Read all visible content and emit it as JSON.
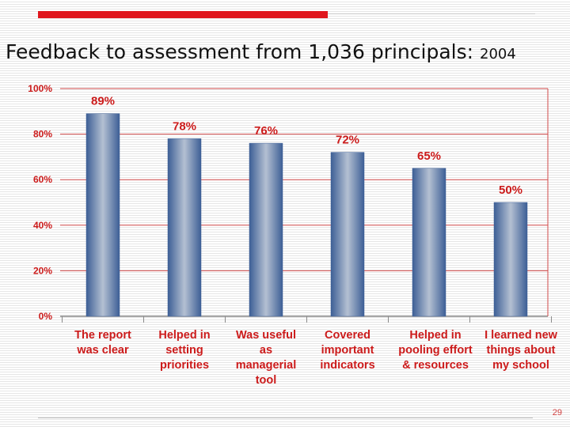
{
  "slide": {
    "title": "Feedback to assessment from 1,036 principals:",
    "title_year": "2004",
    "slide_number": "29"
  },
  "chart_data": {
    "type": "bar",
    "title": "Feedback to assessment from 1,036 principals: 2004",
    "categories": [
      [
        "The report",
        "was clear"
      ],
      [
        "Helped in",
        "setting",
        "priorities"
      ],
      [
        "Was useful",
        "as",
        "managerial",
        "tool"
      ],
      [
        "Covered",
        "important",
        "indicators"
      ],
      [
        "Helped in",
        "pooling effort",
        "& resources"
      ],
      [
        "I learned new",
        "things about",
        "my school"
      ]
    ],
    "values": [
      89,
      78,
      76,
      72,
      65,
      50
    ],
    "data_labels": [
      "89%",
      "78%",
      "76%",
      "72%",
      "65%",
      "50%"
    ],
    "yticks": [
      "0%",
      "20%",
      "40%",
      "60%",
      "80%",
      "100%"
    ],
    "ylim": [
      0,
      100
    ],
    "grid": true,
    "colors": {
      "bar_edge": "#3d5f96",
      "bar_center": "#b4c0d2",
      "axis_text": "#cc1b1b",
      "gridline": "#d24a4a",
      "category_text": "#cc1b1b"
    }
  }
}
